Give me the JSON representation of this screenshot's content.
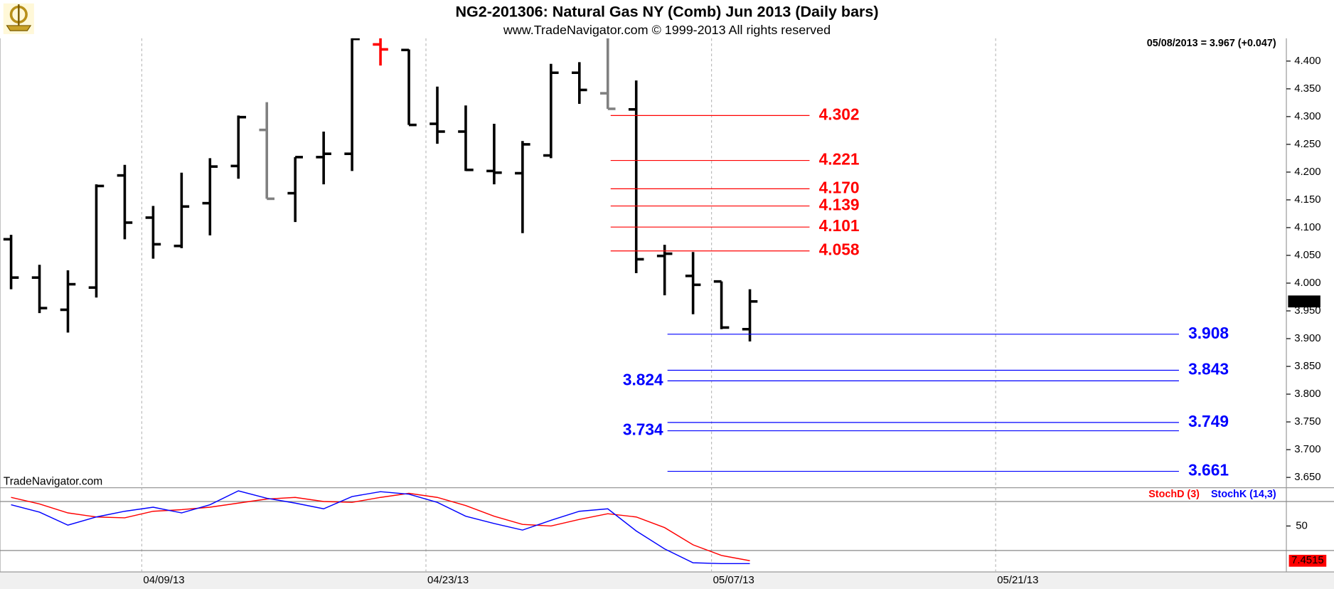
{
  "chart_data": [
    {
      "type": "ohlc",
      "title": "NG2-201306:  Natural Gas NY (Comb) Jun 2013  (Daily bars)",
      "subtitle": "www.TradeNavigator.com © 1999-2013 All rights reserved",
      "watermark": "TradeNavigator.com",
      "annotation": "05/08/2013 = 3.967 (+0.047)",
      "open": [
        4.079,
        4.01,
        3.952,
        3.992,
        4.194,
        4.118,
        4.067,
        4.144,
        4.211,
        4.276,
        4.162,
        4.227,
        4.233,
        4.43,
        4.42,
        4.287,
        4.273,
        4.202,
        4.198,
        4.23,
        4.379,
        4.342,
        4.313,
        4.049,
        4.013,
        4.003,
        3.917
      ],
      "high": [
        4.087,
        4.033,
        4.023,
        4.178,
        4.213,
        4.139,
        4.199,
        4.225,
        4.302,
        4.326,
        4.227,
        4.273,
        4.45,
        4.45,
        4.421,
        4.354,
        4.32,
        4.287,
        4.256,
        4.395,
        4.398,
        4.45,
        4.365,
        4.069,
        4.056,
        4.003,
        3.989
      ],
      "low": [
        3.989,
        3.946,
        3.911,
        3.974,
        4.079,
        4.044,
        4.063,
        4.086,
        4.188,
        4.152,
        4.11,
        4.178,
        4.202,
        4.392,
        4.285,
        4.251,
        4.202,
        4.178,
        4.09,
        4.225,
        4.323,
        4.314,
        4.018,
        3.978,
        3.944,
        3.917,
        3.895
      ],
      "close": [
        4.01,
        3.955,
        3.998,
        4.175,
        4.109,
        4.07,
        4.138,
        4.21,
        4.299,
        4.152,
        4.227,
        4.233,
        4.44,
        4.421,
        4.285,
        4.273,
        4.204,
        4.199,
        4.25,
        4.379,
        4.348,
        4.314,
        4.043,
        4.053,
        3.997,
        3.92,
        3.967
      ],
      "bar_colors": [
        "#000000",
        "#000000",
        "#000000",
        "#000000",
        "#000000",
        "#000000",
        "#000000",
        "#000000",
        "#000000",
        "#808080",
        "#000000",
        "#000000",
        "#000000",
        "#ff0000",
        "#000000",
        "#000000",
        "#000000",
        "#000000",
        "#000000",
        "#000000",
        "#000000",
        "#808080",
        "#000000",
        "#000000",
        "#000000",
        "#000000",
        "#000000"
      ],
      "ylim": [
        3.633,
        4.441
      ],
      "yticks": [
        {
          "value": 3.65,
          "label": "3.650"
        },
        {
          "value": 3.7,
          "label": "3.700"
        },
        {
          "value": 3.75,
          "label": "3.750"
        },
        {
          "value": 3.8,
          "label": "3.800"
        },
        {
          "value": 3.85,
          "label": "3.850"
        },
        {
          "value": 3.9,
          "label": "3.900"
        },
        {
          "value": 3.95,
          "label": "3.950"
        },
        {
          "value": 4.0,
          "label": "4.000"
        },
        {
          "value": 4.05,
          "label": "4.050"
        },
        {
          "value": 4.1,
          "label": "4.100"
        },
        {
          "value": 4.15,
          "label": "4.150"
        },
        {
          "value": 4.2,
          "label": "4.200"
        },
        {
          "value": 4.25,
          "label": "4.250"
        },
        {
          "value": 4.3,
          "label": "4.300"
        },
        {
          "value": 4.35,
          "label": "4.350"
        },
        {
          "value": 4.4,
          "label": "4.400"
        }
      ],
      "xlim": [
        -0.39,
        44.88
      ],
      "xticks": [
        {
          "value": 4.6,
          "label": "04/09/13"
        },
        {
          "value": 14.6,
          "label": "04/23/13"
        },
        {
          "value": 24.65,
          "label": "05/07/13"
        },
        {
          "value": 34.65,
          "label": "05/21/13"
        }
      ],
      "grid": true,
      "levels": [
        {
          "color": "#ff0000",
          "x_range": [
            21.1,
            28.1
          ],
          "label_side": "right",
          "items": [
            {
              "value": 4.302
            },
            {
              "value": 4.221
            },
            {
              "value": 4.17,
              "label": "4.170"
            },
            {
              "value": 4.139
            },
            {
              "value": 4.101
            },
            {
              "value": 4.058
            }
          ]
        },
        {
          "color": "#0000ff",
          "x_range": [
            23.1,
            41.1
          ],
          "label_side": "right",
          "items": [
            {
              "value": 3.908
            },
            {
              "value": 3.843
            },
            {
              "value": 3.749
            },
            {
              "value": 3.661
            }
          ]
        },
        {
          "color": "#0000ff",
          "x_range": [
            23.1,
            41.1
          ],
          "label_side": "left",
          "items": [
            {
              "value": 3.824
            },
            {
              "value": 3.734
            }
          ]
        }
      ]
    },
    {
      "type": "line",
      "series": [
        {
          "name": "StochD (3)",
          "color": "#ff0000",
          "values": [
            85,
            77,
            66,
            61,
            60,
            68,
            70,
            73,
            78,
            83,
            85,
            80,
            79,
            85,
            90,
            85,
            75,
            62,
            52,
            50,
            58,
            65,
            61,
            48,
            27,
            14,
            7.4515
          ]
        },
        {
          "name": "StochK (14,3)",
          "color": "#0000ff",
          "values": [
            76,
            67,
            51,
            61,
            68,
            73,
            66,
            76,
            93,
            84,
            78,
            71,
            86,
            92,
            89,
            79,
            62,
            53,
            45,
            57,
            68,
            71,
            44,
            22,
            5,
            4,
            4
          ]
        }
      ],
      "ylim": [
        0,
        100
      ],
      "yticks": [
        50
      ],
      "hlines": [
        20,
        80
      ]
    }
  ]
}
